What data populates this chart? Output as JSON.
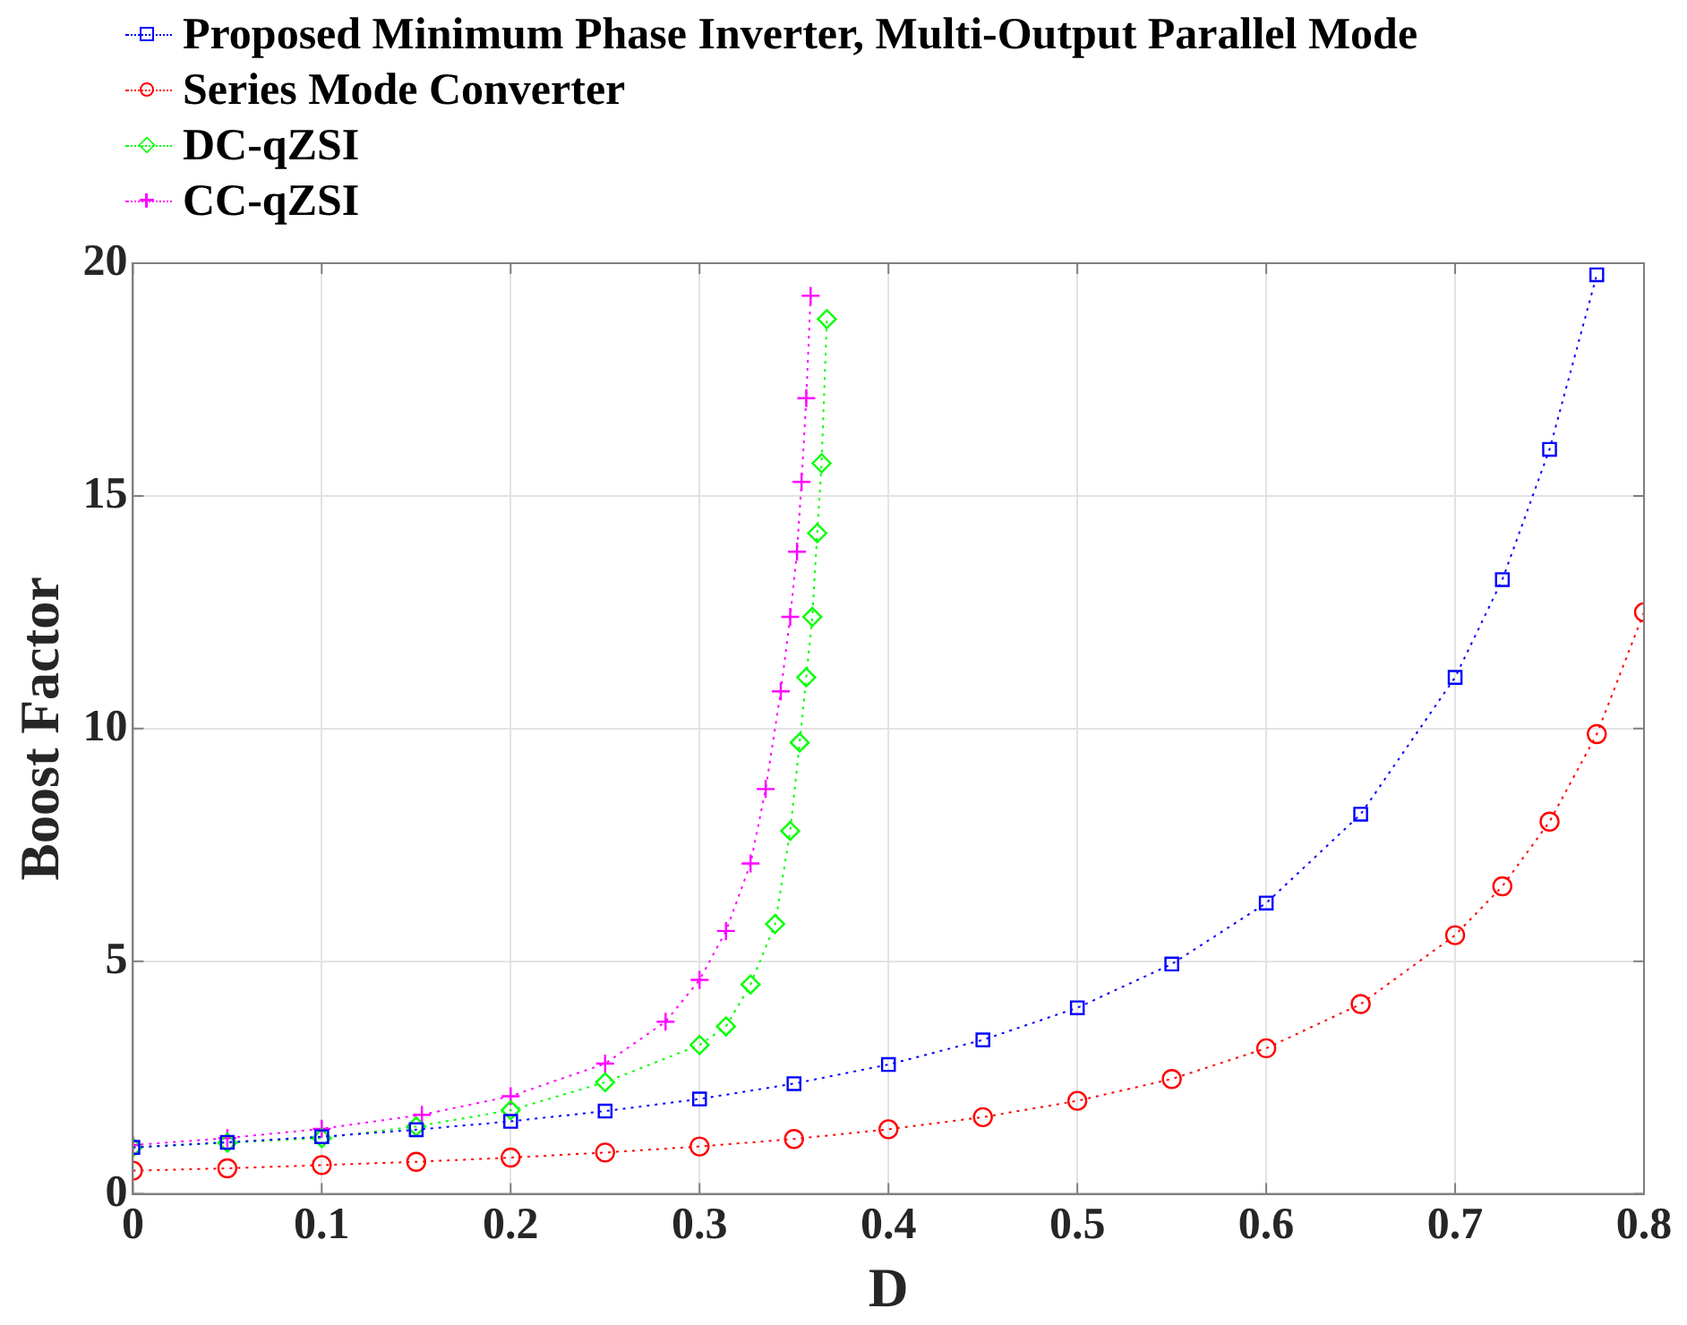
{
  "chart_data": {
    "type": "line",
    "xlabel": "D",
    "ylabel": "Boost Factor",
    "xlim": [
      0,
      0.8
    ],
    "xticks": [
      0,
      0.1,
      0.2,
      0.3,
      0.4,
      0.5,
      0.6,
      0.7,
      0.8
    ],
    "ylim": [
      0,
      20
    ],
    "yticks": [
      0,
      5,
      10,
      15,
      20
    ],
    "grid": true,
    "legend": "top left",
    "line_style": "dotted",
    "series": [
      {
        "name": "Proposed Minimum Phase Inverter, Multi-Output Parallel Mode",
        "color": "#0000ff",
        "marker": "square",
        "x": [
          0,
          0.05,
          0.1,
          0.15,
          0.2,
          0.25,
          0.3,
          0.35,
          0.4,
          0.45,
          0.5,
          0.55,
          0.6,
          0.65,
          0.7,
          0.725,
          0.75,
          0.775
        ],
        "values": [
          1,
          1.11,
          1.23,
          1.38,
          1.56,
          1.78,
          2.04,
          2.37,
          2.78,
          3.31,
          4,
          4.94,
          6.25,
          8.16,
          11.1,
          13.2,
          16,
          19.75
        ]
      },
      {
        "name": "Series Mode Converter",
        "color": "#ff0000",
        "marker": "circle",
        "x": [
          0,
          0.05,
          0.1,
          0.15,
          0.2,
          0.25,
          0.3,
          0.35,
          0.4,
          0.45,
          0.5,
          0.55,
          0.6,
          0.65,
          0.7,
          0.725,
          0.75,
          0.775,
          0.8
        ],
        "values": [
          0.5,
          0.55,
          0.62,
          0.69,
          0.78,
          0.89,
          1.02,
          1.18,
          1.39,
          1.65,
          2,
          2.47,
          3.13,
          4.08,
          5.56,
          6.61,
          8,
          9.88,
          12.5
        ]
      },
      {
        "name": "DC-qZSI",
        "color": "#00ff00",
        "marker": "diamond",
        "x": [
          0,
          0.05,
          0.1,
          0.15,
          0.2,
          0.25,
          0.3,
          0.314,
          0.327,
          0.34,
          0.348,
          0.353,
          0.3565,
          0.3597,
          0.3623,
          0.3646,
          0.3674
        ],
        "values": [
          1,
          1.1,
          1.2,
          1.45,
          1.8,
          2.4,
          3.2,
          3.6,
          4.5,
          5.8,
          7.8,
          9.7,
          11.1,
          12.4,
          14.2,
          15.7,
          18.8
        ]
      },
      {
        "name": "CC-qZSI",
        "color": "#ff00ff",
        "marker": "cross",
        "x": [
          0,
          0.05,
          0.1,
          0.153,
          0.2,
          0.25,
          0.282,
          0.3,
          0.314,
          0.327,
          0.335,
          0.343,
          0.348,
          0.3516,
          0.354,
          0.3565,
          0.3588
        ],
        "values": [
          1.05,
          1.2,
          1.4,
          1.7,
          2.1,
          2.8,
          3.7,
          4.6,
          5.65,
          7.1,
          8.7,
          10.8,
          12.4,
          13.8,
          15.3,
          17.1,
          19.3
        ]
      }
    ]
  }
}
